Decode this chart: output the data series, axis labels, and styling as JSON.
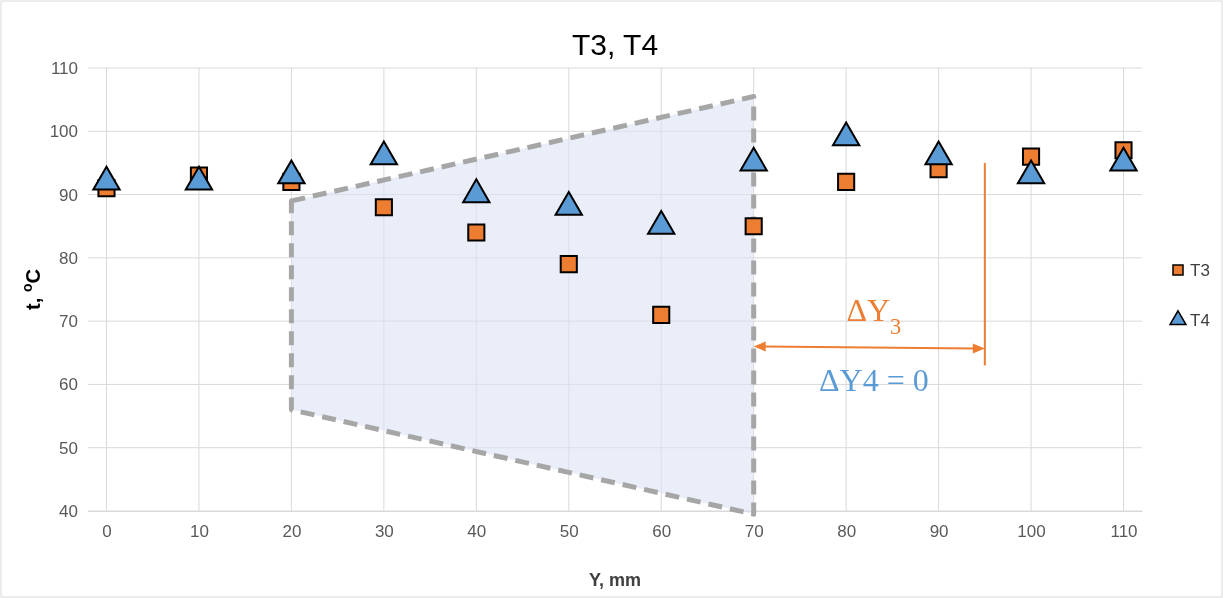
{
  "chart_data": {
    "type": "scatter",
    "title": "T3, T4",
    "xlabel": "Y, mm",
    "ylabel": "t, $^{o}$C",
    "xlim": [
      -2,
      112
    ],
    "xticks": [
      0,
      10,
      20,
      30,
      40,
      50,
      60,
      70,
      80,
      90,
      100,
      110
    ],
    "ylim": [
      40,
      110
    ],
    "yticks": [
      40,
      50,
      60,
      70,
      80,
      90,
      100,
      110
    ],
    "grid": true,
    "legend": "right",
    "series": [
      {
        "name": "T3",
        "color": "#ed7d31",
        "marker": "square",
        "x": [
          0,
          10,
          20,
          30,
          40,
          50,
          60,
          70,
          80,
          90,
          100,
          110
        ],
        "values": [
          91,
          93,
          92,
          88,
          84,
          79,
          71,
          85,
          92,
          94,
          96,
          97
        ]
      },
      {
        "name": "T4",
        "color": "#5b9bd5",
        "marker": "triangle",
        "x": [
          0,
          10,
          20,
          30,
          40,
          50,
          60,
          70,
          80,
          90,
          100,
          110
        ],
        "values": [
          92,
          92,
          93,
          96,
          90,
          88,
          85,
          95,
          99,
          96,
          93,
          95
        ]
      }
    ],
    "annotations": [
      "ΔY$_{3}$",
      "ΔY4 = 0"
    ]
  }
}
